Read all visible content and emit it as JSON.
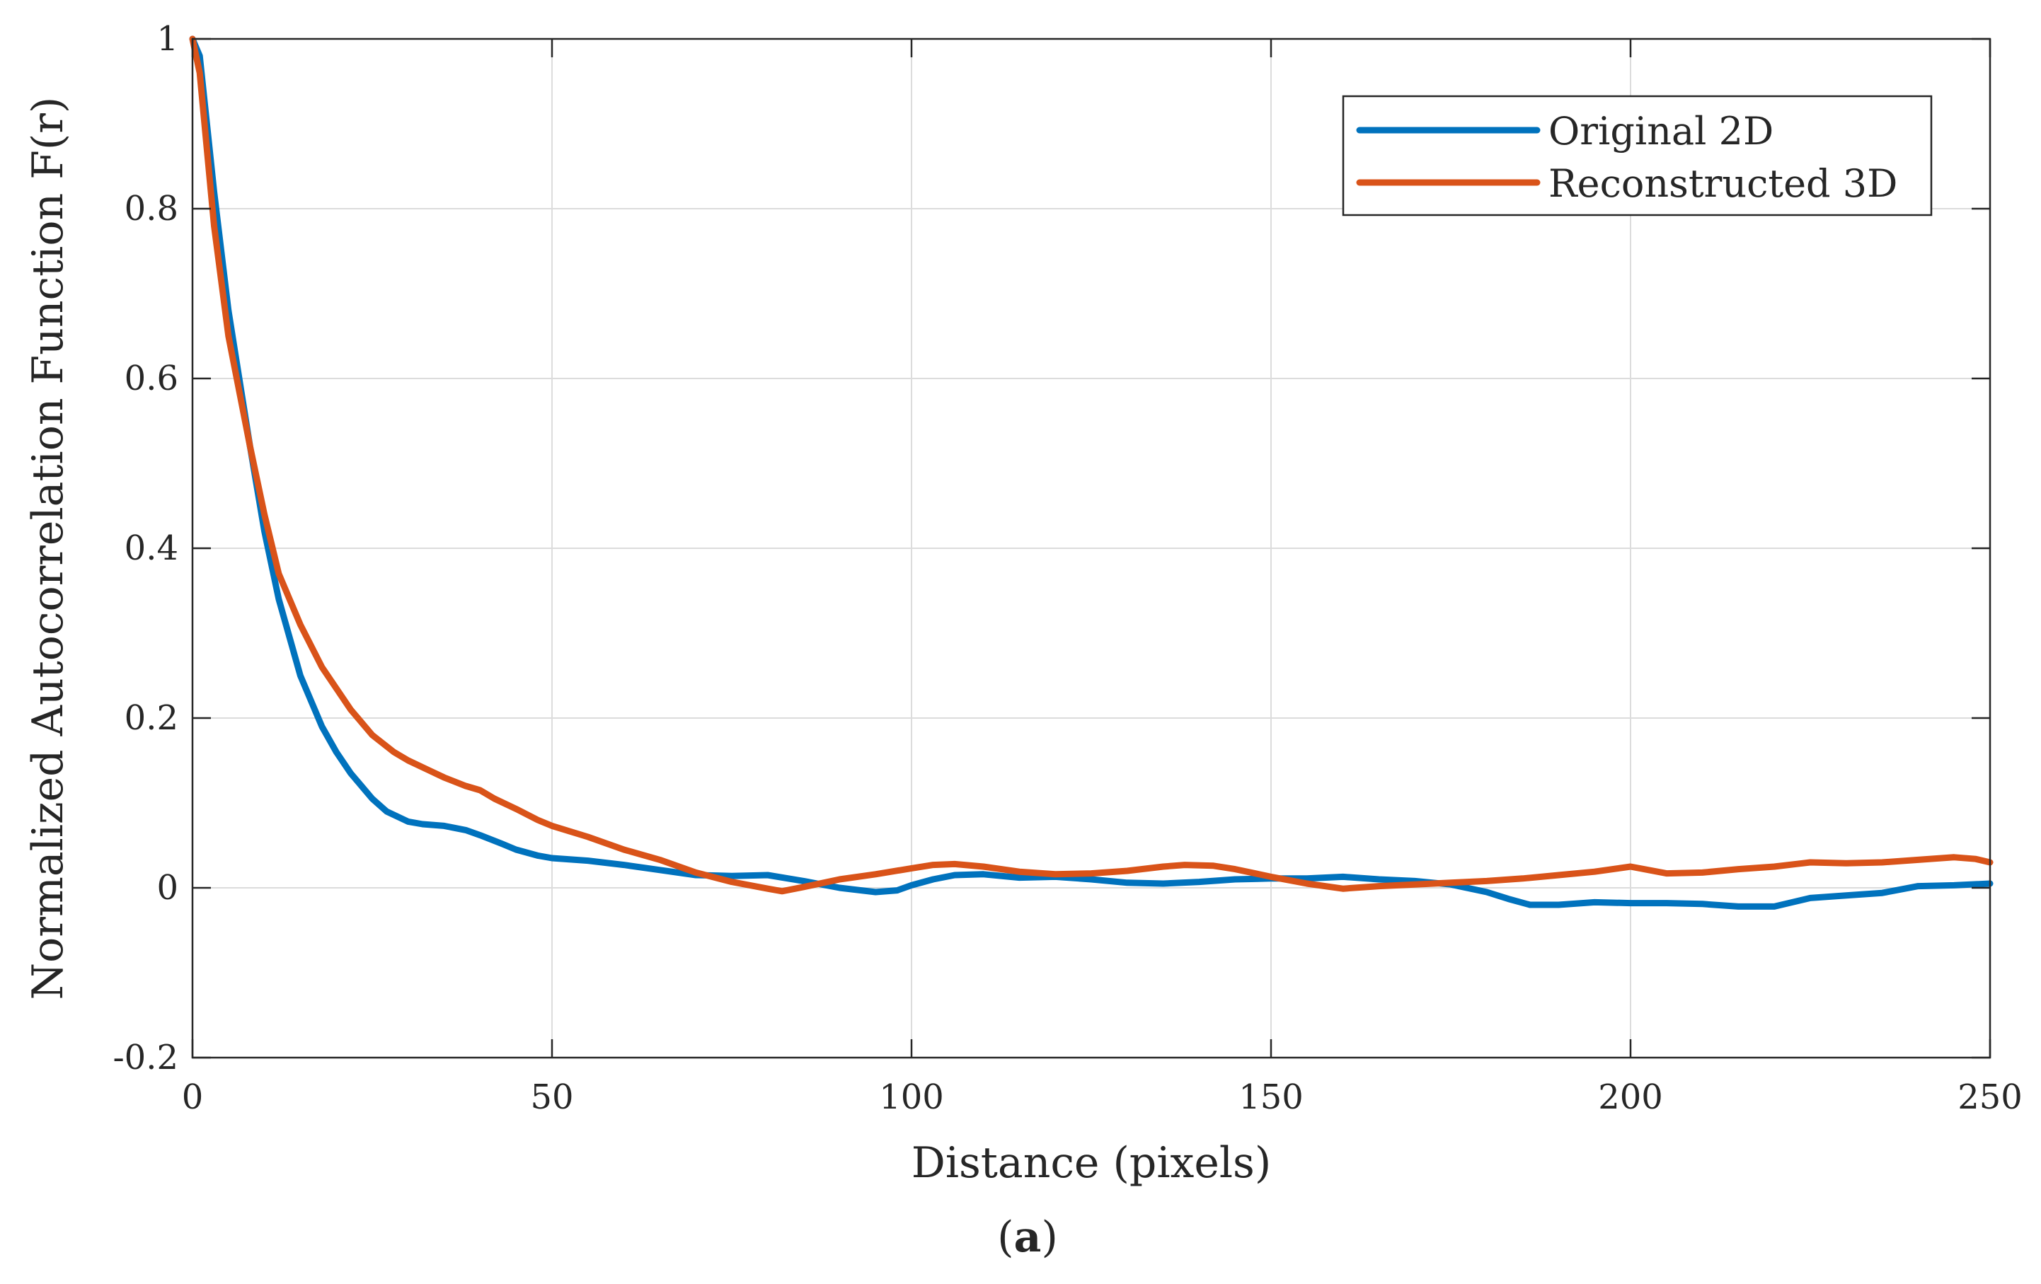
{
  "chart_data": {
    "type": "line",
    "title": "",
    "xlabel": "Distance (pixels)",
    "ylabel": "Normalized Autocorrelation Function F(r)",
    "xlim": [
      0,
      250
    ],
    "ylim": [
      -0.2,
      1
    ],
    "xticks": [
      0,
      50,
      100,
      150,
      200,
      250
    ],
    "xtick_labels": [
      "0",
      "50",
      "100",
      "150",
      "200",
      "250"
    ],
    "yticks": [
      -0.2,
      0,
      0.2,
      0.4,
      0.6,
      0.8,
      1
    ],
    "ytick_labels": [
      "-0.2",
      "0",
      "0.2",
      "0.4",
      "0.6",
      "0.8",
      "1"
    ],
    "grid": true,
    "legend_position": "top-right",
    "series": [
      {
        "name": "Original 2D",
        "color": "#0072BD",
        "x": [
          0,
          1,
          3,
          5,
          8,
          10,
          12,
          15,
          18,
          20,
          22,
          25,
          27,
          30,
          32,
          35,
          38,
          40,
          43,
          45,
          48,
          50,
          55,
          60,
          65,
          70,
          75,
          80,
          85,
          90,
          95,
          98,
          100,
          103,
          106,
          110,
          115,
          120,
          125,
          130,
          135,
          140,
          145,
          150,
          155,
          160,
          165,
          170,
          175,
          180,
          183,
          186,
          190,
          195,
          200,
          205,
          210,
          215,
          220,
          225,
          230,
          235,
          240,
          245,
          250
        ],
        "y": [
          1.0,
          0.98,
          0.82,
          0.68,
          0.52,
          0.42,
          0.34,
          0.25,
          0.19,
          0.16,
          0.135,
          0.105,
          0.09,
          0.078,
          0.075,
          0.073,
          0.068,
          0.062,
          0.052,
          0.045,
          0.038,
          0.035,
          0.032,
          0.027,
          0.021,
          0.015,
          0.014,
          0.015,
          0.008,
          0.0,
          -0.005,
          -0.003,
          0.003,
          0.01,
          0.015,
          0.016,
          0.012,
          0.013,
          0.01,
          0.006,
          0.005,
          0.007,
          0.01,
          0.011,
          0.011,
          0.013,
          0.01,
          0.008,
          0.004,
          -0.005,
          -0.013,
          -0.02,
          -0.02,
          -0.017,
          -0.018,
          -0.018,
          -0.019,
          -0.022,
          -0.022,
          -0.012,
          -0.009,
          -0.006,
          0.002,
          0.003,
          0.005
        ]
      },
      {
        "name": "Reconstructed 3D",
        "color": "#D95319",
        "x": [
          0,
          1,
          3,
          5,
          8,
          10,
          12,
          15,
          18,
          20,
          22,
          25,
          28,
          30,
          33,
          35,
          38,
          40,
          42,
          45,
          48,
          50,
          55,
          60,
          65,
          70,
          75,
          80,
          82,
          85,
          90,
          95,
          100,
          103,
          106,
          110,
          115,
          120,
          125,
          130,
          135,
          138,
          142,
          145,
          150,
          155,
          160,
          165,
          170,
          175,
          180,
          185,
          190,
          195,
          200,
          205,
          210,
          215,
          220,
          225,
          230,
          235,
          240,
          245,
          248,
          250
        ],
        "y": [
          1.0,
          0.96,
          0.78,
          0.65,
          0.52,
          0.44,
          0.37,
          0.31,
          0.26,
          0.235,
          0.21,
          0.18,
          0.16,
          0.15,
          0.138,
          0.13,
          0.12,
          0.115,
          0.105,
          0.093,
          0.08,
          0.073,
          0.06,
          0.045,
          0.033,
          0.018,
          0.007,
          -0.001,
          -0.004,
          0.001,
          0.01,
          0.016,
          0.023,
          0.027,
          0.028,
          0.025,
          0.019,
          0.016,
          0.017,
          0.02,
          0.025,
          0.027,
          0.026,
          0.022,
          0.013,
          0.005,
          -0.001,
          0.002,
          0.004,
          0.006,
          0.008,
          0.011,
          0.015,
          0.019,
          0.025,
          0.017,
          0.018,
          0.022,
          0.025,
          0.03,
          0.029,
          0.03,
          0.033,
          0.036,
          0.034,
          0.03
        ]
      }
    ],
    "caption": {
      "open": "(",
      "letter": "a",
      "close": ")"
    }
  }
}
